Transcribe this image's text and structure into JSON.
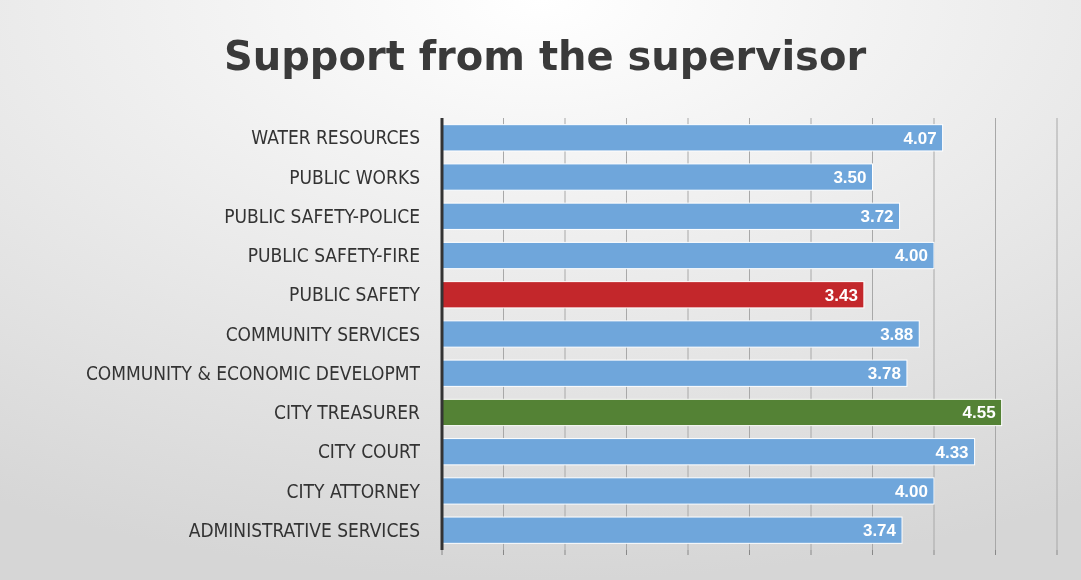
{
  "chart_data": {
    "type": "bar",
    "orientation": "horizontal",
    "title": "Support from the supervisor",
    "categories": [
      "WATER RESOURCES",
      "PUBLIC WORKS",
      "PUBLIC SAFETY-POLICE",
      "PUBLIC SAFETY-FIRE",
      "PUBLIC SAFETY",
      "COMMUNITY SERVICES",
      "COMMUNITY & ECONOMIC DEVELOPMT",
      "CITY TREASURER",
      "CITY COURT",
      "CITY ATTORNEY",
      "ADMINISTRATIVE SERVICES"
    ],
    "values": [
      4.07,
      3.5,
      3.72,
      4.0,
      3.43,
      3.88,
      3.78,
      4.55,
      4.33,
      4.0,
      3.74
    ],
    "value_labels": [
      "4.07",
      "3.50",
      "3.72",
      "4.00",
      "3.43",
      "3.88",
      "3.78",
      "4.55",
      "4.33",
      "4.00",
      "3.74"
    ],
    "colors": [
      "#6fa6db",
      "#6fa6db",
      "#6fa6db",
      "#6fa6db",
      "#c3272b",
      "#6fa6db",
      "#6fa6db",
      "#548235",
      "#6fa6db",
      "#6fa6db",
      "#6fa6db"
    ],
    "xlim": [
      0,
      5
    ],
    "xticks": [
      {
        "value": 0,
        "label": null
      },
      {
        "value": 0.5,
        "label": null
      },
      {
        "value": 1,
        "label": null
      },
      {
        "value": 1.5,
        "label": null
      },
      {
        "value": 2,
        "label": null
      },
      {
        "value": 2.5,
        "label": null
      },
      {
        "value": 3,
        "label": null
      },
      {
        "value": 3.5,
        "label": null
      },
      {
        "value": 4,
        "label": null
      },
      {
        "value": 4.5,
        "label": null
      },
      {
        "value": 5,
        "label": null
      }
    ],
    "grid": "x",
    "tick_labels": "y"
  }
}
